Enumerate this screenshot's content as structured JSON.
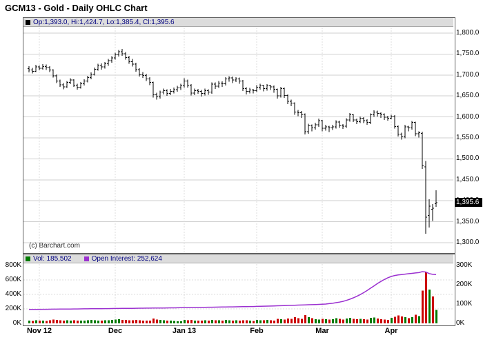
{
  "title": "GCM13 - Gold - Daily OHLC Chart",
  "copyright": "(c) Barchart.com",
  "colors": {
    "ohlc_bar": "#000000",
    "volume_up": "#007a00",
    "volume_down": "#cc0000",
    "open_interest": "#9b30d0",
    "legend_text": "#000080",
    "last_price_bg": "#000000",
    "gridline": "#cfcfcf"
  },
  "chart_data": [
    {
      "type": "ohlc",
      "title": "GCM13 - Gold - Daily OHLC Chart",
      "legend": "Op:1,393.0, Hi:1,424.7, Lo:1,385.4, Cl:1,395.6",
      "ylim": [
        1300,
        1800
      ],
      "grid": true,
      "last_price": 1395.6,
      "last_price_label": "1,395.6",
      "y_ticks": [
        {
          "label": "1,800.0",
          "value": 1800
        },
        {
          "label": "1,750.0",
          "value": 1750
        },
        {
          "label": "1,700.0",
          "value": 1700
        },
        {
          "label": "1,650.0",
          "value": 1650
        },
        {
          "label": "1,600.0",
          "value": 1600
        },
        {
          "label": "1,550.0",
          "value": 1550
        },
        {
          "label": "1,500.0",
          "value": 1500
        },
        {
          "label": "1,450.0",
          "value": 1450
        },
        {
          "label": "1,400.0",
          "value": 1400
        },
        {
          "label": "1,350.0",
          "value": 1350
        },
        {
          "label": "1,300.0",
          "value": 1300
        }
      ],
      "x_ticks": [
        {
          "label": "Nov 12",
          "index": 3
        },
        {
          "label": "Dec",
          "index": 25
        },
        {
          "label": "Jan 13",
          "index": 45
        },
        {
          "label": "Feb",
          "index": 66
        },
        {
          "label": "Mar",
          "index": 85
        },
        {
          "label": "Apr",
          "index": 105
        }
      ],
      "bars": [
        [
          1715,
          1721,
          1706,
          1712
        ],
        [
          1712,
          1717,
          1704,
          1709
        ],
        [
          1709,
          1724,
          1707,
          1719
        ],
        [
          1719,
          1723,
          1711,
          1716
        ],
        [
          1716,
          1726,
          1713,
          1720
        ],
        [
          1720,
          1725,
          1712,
          1718
        ],
        [
          1718,
          1721,
          1707,
          1712
        ],
        [
          1712,
          1714,
          1694,
          1698
        ],
        [
          1698,
          1701,
          1681,
          1686
        ],
        [
          1686,
          1689,
          1672,
          1677
        ],
        [
          1677,
          1681,
          1666,
          1672
        ],
        [
          1672,
          1686,
          1669,
          1682
        ],
        [
          1682,
          1692,
          1678,
          1688
        ],
        [
          1688,
          1690,
          1672,
          1676
        ],
        [
          1676,
          1679,
          1665,
          1671
        ],
        [
          1671,
          1683,
          1668,
          1679
        ],
        [
          1679,
          1690,
          1675,
          1686
        ],
        [
          1686,
          1698,
          1682,
          1694
        ],
        [
          1694,
          1706,
          1690,
          1702
        ],
        [
          1702,
          1718,
          1699,
          1714
        ],
        [
          1714,
          1727,
          1710,
          1723
        ],
        [
          1723,
          1728,
          1713,
          1719
        ],
        [
          1719,
          1731,
          1715,
          1727
        ],
        [
          1727,
          1738,
          1722,
          1734
        ],
        [
          1734,
          1745,
          1729,
          1741
        ],
        [
          1741,
          1753,
          1737,
          1749
        ],
        [
          1749,
          1760,
          1744,
          1756
        ],
        [
          1756,
          1762,
          1746,
          1751
        ],
        [
          1751,
          1755,
          1737,
          1742
        ],
        [
          1742,
          1746,
          1727,
          1732
        ],
        [
          1732,
          1738,
          1720,
          1726
        ],
        [
          1726,
          1729,
          1708,
          1713
        ],
        [
          1713,
          1716,
          1696,
          1701
        ],
        [
          1701,
          1707,
          1693,
          1699
        ],
        [
          1699,
          1703,
          1686,
          1691
        ],
        [
          1691,
          1695,
          1676,
          1682
        ],
        [
          1682,
          1684,
          1646,
          1653
        ],
        [
          1653,
          1658,
          1641,
          1648
        ],
        [
          1648,
          1663,
          1644,
          1659
        ],
        [
          1659,
          1668,
          1654,
          1663
        ],
        [
          1663,
          1666,
          1650,
          1656
        ],
        [
          1656,
          1667,
          1652,
          1661
        ],
        [
          1661,
          1670,
          1656,
          1665
        ],
        [
          1665,
          1674,
          1660,
          1669
        ],
        [
          1669,
          1679,
          1664,
          1674
        ],
        [
          1674,
          1692,
          1670,
          1686
        ],
        [
          1686,
          1689,
          1670,
          1675
        ],
        [
          1675,
          1678,
          1651,
          1657
        ],
        [
          1657,
          1668,
          1652,
          1663
        ],
        [
          1663,
          1667,
          1655,
          1661
        ],
        [
          1661,
          1664,
          1649,
          1656
        ],
        [
          1656,
          1668,
          1651,
          1663
        ],
        [
          1663,
          1666,
          1653,
          1659
        ],
        [
          1659,
          1682,
          1655,
          1678
        ],
        [
          1678,
          1682,
          1667,
          1673
        ],
        [
          1673,
          1686,
          1669,
          1681
        ],
        [
          1681,
          1685,
          1672,
          1679
        ],
        [
          1679,
          1695,
          1675,
          1691
        ],
        [
          1691,
          1697,
          1684,
          1693
        ],
        [
          1693,
          1696,
          1681,
          1688
        ],
        [
          1688,
          1695,
          1683,
          1691
        ],
        [
          1691,
          1694,
          1679,
          1686
        ],
        [
          1686,
          1688,
          1662,
          1668
        ],
        [
          1668,
          1671,
          1654,
          1661
        ],
        [
          1661,
          1669,
          1656,
          1664
        ],
        [
          1664,
          1667,
          1656,
          1663
        ],
        [
          1663,
          1676,
          1659,
          1671
        ],
        [
          1671,
          1679,
          1665,
          1675
        ],
        [
          1675,
          1677,
          1661,
          1668
        ],
        [
          1668,
          1678,
          1663,
          1674
        ],
        [
          1674,
          1677,
          1664,
          1672
        ],
        [
          1672,
          1675,
          1658,
          1666
        ],
        [
          1666,
          1668,
          1644,
          1650
        ],
        [
          1650,
          1672,
          1646,
          1668
        ],
        [
          1668,
          1670,
          1645,
          1651
        ],
        [
          1651,
          1654,
          1631,
          1637
        ],
        [
          1637,
          1641,
          1626,
          1633
        ],
        [
          1633,
          1635,
          1605,
          1612
        ],
        [
          1612,
          1617,
          1602,
          1610
        ],
        [
          1610,
          1614,
          1598,
          1606
        ],
        [
          1606,
          1608,
          1558,
          1565
        ],
        [
          1565,
          1584,
          1560,
          1579
        ],
        [
          1579,
          1582,
          1566,
          1574
        ],
        [
          1574,
          1586,
          1570,
          1581
        ],
        [
          1581,
          1596,
          1576,
          1591
        ],
        [
          1591,
          1593,
          1566,
          1573
        ],
        [
          1573,
          1581,
          1567,
          1576
        ],
        [
          1576,
          1579,
          1564,
          1574
        ],
        [
          1574,
          1581,
          1569,
          1576
        ],
        [
          1576,
          1592,
          1572,
          1588
        ],
        [
          1588,
          1591,
          1574,
          1580
        ],
        [
          1580,
          1583,
          1571,
          1578
        ],
        [
          1578,
          1597,
          1574,
          1593
        ],
        [
          1593,
          1609,
          1589,
          1605
        ],
        [
          1605,
          1607,
          1588,
          1593
        ],
        [
          1593,
          1596,
          1583,
          1589
        ],
        [
          1589,
          1601,
          1585,
          1597
        ],
        [
          1597,
          1599,
          1585,
          1591
        ],
        [
          1591,
          1594,
          1581,
          1587
        ],
        [
          1587,
          1608,
          1583,
          1605
        ],
        [
          1605,
          1616,
          1600,
          1612
        ],
        [
          1612,
          1615,
          1601,
          1608
        ],
        [
          1608,
          1611,
          1598,
          1606
        ],
        [
          1606,
          1608,
          1593,
          1599
        ],
        [
          1599,
          1603,
          1591,
          1597
        ],
        [
          1597,
          1605,
          1594,
          1601
        ],
        [
          1601,
          1604,
          1572,
          1577
        ],
        [
          1577,
          1580,
          1553,
          1559
        ],
        [
          1559,
          1562,
          1546,
          1553
        ],
        [
          1553,
          1581,
          1549,
          1576
        ],
        [
          1576,
          1579,
          1566,
          1574
        ],
        [
          1574,
          1590,
          1570,
          1587
        ],
        [
          1587,
          1589,
          1554,
          1560
        ],
        [
          1560,
          1566,
          1551,
          1562
        ],
        [
          1561,
          1565,
          1476,
          1484
        ],
        [
          1481,
          1495,
          1321,
          1361
        ],
        [
          1365,
          1404,
          1336,
          1387
        ],
        [
          1380,
          1392,
          1352,
          1382
        ],
        [
          1393.0,
          1424.7,
          1385.4,
          1395.6
        ]
      ]
    },
    {
      "type": "bar+line",
      "legend_volume": "Vol: 185,502",
      "legend_open_interest": "Open Interest: 252,624",
      "left_ylim_k": [
        0,
        800
      ],
      "left_ticks": [
        {
          "label": "800K",
          "value": 800
        },
        {
          "label": "600K",
          "value": 600
        },
        {
          "label": "400K",
          "value": 400
        },
        {
          "label": "200K",
          "value": 200
        },
        {
          "label": "0K",
          "value": 0
        }
      ],
      "right_ylim_k": [
        0,
        300
      ],
      "right_ticks": [
        {
          "label": "300K",
          "value": 300
        },
        {
          "label": "200K",
          "value": 200
        },
        {
          "label": "100K",
          "value": 100
        },
        {
          "label": "0K",
          "value": 0
        }
      ],
      "volume_k": [
        38,
        35,
        42,
        40,
        36,
        33,
        45,
        52,
        48,
        44,
        39,
        41,
        37,
        43,
        40,
        36,
        38,
        44,
        47,
        42,
        39,
        36,
        41,
        45,
        48,
        52,
        55,
        49,
        46,
        43,
        41,
        47,
        44,
        40,
        38,
        36,
        68,
        54,
        46,
        42,
        39,
        37,
        35,
        30,
        28,
        46,
        42,
        48,
        40,
        38,
        36,
        41,
        39,
        47,
        42,
        44,
        40,
        46,
        43,
        39,
        41,
        38,
        45,
        42,
        37,
        35,
        48,
        44,
        41,
        46,
        43,
        40,
        62,
        58,
        54,
        66,
        61,
        88,
        72,
        64,
        112,
        86,
        70,
        58,
        52,
        64,
        58,
        52,
        56,
        70,
        60,
        54,
        68,
        76,
        62,
        56,
        60,
        55,
        52,
        74,
        80,
        66,
        58,
        54,
        50,
        78,
        92,
        110,
        96,
        84,
        72,
        88,
        118,
        102,
        452,
        708,
        465,
        372,
        185.502
      ],
      "open_interest_k": [
        72.0,
        72.2,
        72.4,
        72.6,
        72.8,
        73.0,
        73.2,
        73.4,
        73.6,
        73.8,
        74.0,
        74.2,
        74.4,
        74.6,
        74.8,
        75.0,
        75.2,
        75.4,
        75.6,
        75.8,
        76.0,
        76.2,
        76.4,
        76.6,
        76.8,
        77.0,
        77.2,
        77.4,
        77.6,
        77.8,
        78.0,
        78.2,
        78.4,
        78.6,
        78.8,
        79.0,
        79.2,
        79.4,
        79.6,
        79.8,
        80.0,
        80.2,
        80.5,
        80.8,
        81.0,
        81.3,
        81.6,
        81.9,
        82.2,
        82.5,
        82.8,
        83.1,
        83.4,
        83.7,
        84.0,
        84.3,
        84.6,
        84.9,
        85.2,
        85.5,
        85.8,
        86.1,
        86.4,
        86.7,
        87.0,
        87.3,
        87.8,
        88.3,
        88.8,
        89.3,
        89.8,
        90.3,
        90.9,
        91.5,
        92.1,
        92.7,
        93.3,
        93.9,
        94.5,
        95.1,
        95.7,
        96.3,
        96.9,
        97.5,
        98.1,
        99,
        100,
        102,
        104,
        107,
        110,
        114,
        119,
        125,
        132,
        140,
        149,
        159,
        170,
        182,
        194,
        206,
        217,
        227,
        236,
        243,
        248,
        251,
        253,
        255,
        257,
        259,
        261,
        263,
        268,
        266,
        258,
        254,
        252.624
      ]
    }
  ]
}
